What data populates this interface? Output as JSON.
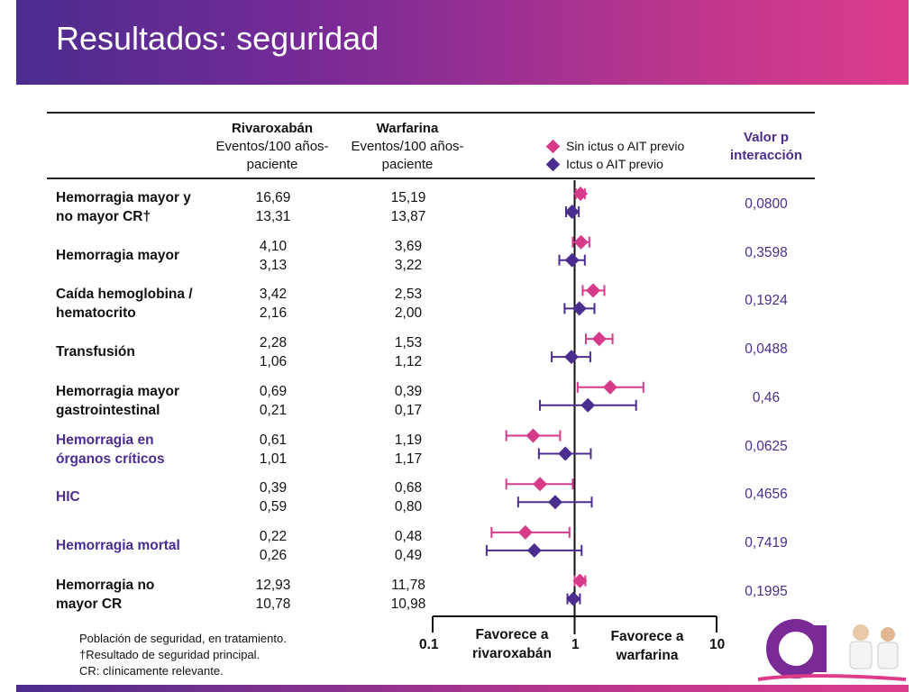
{
  "title": "Resultados: seguridad",
  "header": {
    "riva_line1": "Rivaroxabán",
    "riva_line2": "Eventos/100 años-",
    "riva_line3": "paciente",
    "warf_line1": "Warfarina",
    "warf_line2": "Eventos/100 años-",
    "warf_line3": "paciente",
    "pval_line1": "Valor p",
    "pval_line2": "interacción"
  },
  "legend": [
    {
      "label": "Sin ictus o AIT previo",
      "color": "#d63b8a"
    },
    {
      "label": "Ictus o AIT previo",
      "color": "#4b2d8f"
    }
  ],
  "rows": [
    {
      "label1": "Hemorragia mayor y",
      "label2": "no mayor CR†",
      "riva": [
        "16,69",
        "13,31"
      ],
      "warf": [
        "15,19",
        "13,87"
      ],
      "pval": "0,0800",
      "color": "black"
    },
    {
      "label1": "Hemorragia mayor",
      "label2": "",
      "riva": [
        "4,10",
        "3,13"
      ],
      "warf": [
        "3,69",
        "3,22"
      ],
      "pval": "0,3598",
      "color": "black"
    },
    {
      "label1": "Caída hemoglobina /",
      "label2": "hematocrito",
      "riva": [
        "3,42",
        "2,16"
      ],
      "warf": [
        "2,53",
        "2,00"
      ],
      "pval": "0,1924",
      "color": "black"
    },
    {
      "label1": "Transfusión",
      "label2": "",
      "riva": [
        "2,28",
        "1,06"
      ],
      "warf": [
        "1,53",
        "1,12"
      ],
      "pval": "0,0488",
      "color": "black"
    },
    {
      "label1": "Hemorragia mayor",
      "label2": "gastrointestinal",
      "riva": [
        "0,69",
        "0,21"
      ],
      "warf": [
        "0,39",
        "0,17"
      ],
      "pval": "0,46",
      "color": "black"
    },
    {
      "label1": "Hemorragia en",
      "label2": "órganos críticos",
      "riva": [
        "0,61",
        "1,01"
      ],
      "warf": [
        "1,19",
        "1,17"
      ],
      "pval": "0,0625",
      "color": "purple"
    },
    {
      "label1": "HIC",
      "label2": "",
      "riva": [
        "0,39",
        "0,59"
      ],
      "warf": [
        "0,68",
        "0,80"
      ],
      "pval": "0,4656",
      "color": "purple"
    },
    {
      "label1": "Hemorragia mortal",
      "label2": "",
      "riva": [
        "0,22",
        "0,26"
      ],
      "warf": [
        "0,48",
        "0,49"
      ],
      "pval": "0,7419",
      "color": "purple"
    },
    {
      "label1": "Hemorragia no",
      "label2": "mayor CR",
      "riva": [
        "12,93",
        "10,78"
      ],
      "warf": [
        "11,78",
        "10,98"
      ],
      "pval": "0,1995",
      "color": "black"
    }
  ],
  "axis": {
    "tick_left": "0.1",
    "tick_center": "1",
    "tick_right": "10",
    "favors_left_1": "Favorece a",
    "favors_left_2": "rivaroxabán",
    "favors_right_1": "Favorece a",
    "favors_right_2": "warfarina"
  },
  "footnotes": [
    "Población de seguridad, en tratamiento.",
    "†Resultado de seguridad principal.",
    "CR: clínicamente relevante."
  ],
  "chart_data": {
    "type": "forest",
    "scale": "log",
    "xlim": [
      0.1,
      10
    ],
    "reference": 1,
    "series": [
      {
        "name": "Sin ictus o AIT previo",
        "color": "#d63b8a",
        "points": [
          {
            "est": 1.1,
            "lo": 1.02,
            "hi": 1.18
          },
          {
            "est": 1.11,
            "lo": 0.97,
            "hi": 1.27
          },
          {
            "est": 1.35,
            "lo": 1.14,
            "hi": 1.62
          },
          {
            "est": 1.49,
            "lo": 1.2,
            "hi": 1.85
          },
          {
            "est": 1.78,
            "lo": 1.05,
            "hi": 3.05
          },
          {
            "est": 0.51,
            "lo": 0.33,
            "hi": 0.79
          },
          {
            "est": 0.57,
            "lo": 0.33,
            "hi": 0.97
          },
          {
            "est": 0.45,
            "lo": 0.26,
            "hi": 0.92
          },
          {
            "est": 1.09,
            "lo": 1.0,
            "hi": 1.19
          }
        ]
      },
      {
        "name": "Ictus o AIT previo",
        "color": "#4b2d8f",
        "points": [
          {
            "est": 0.96,
            "lo": 0.87,
            "hi": 1.07
          },
          {
            "est": 0.96,
            "lo": 0.78,
            "hi": 1.18
          },
          {
            "est": 1.08,
            "lo": 0.85,
            "hi": 1.38
          },
          {
            "est": 0.95,
            "lo": 0.69,
            "hi": 1.29
          },
          {
            "est": 1.24,
            "lo": 0.57,
            "hi": 2.71
          },
          {
            "est": 0.86,
            "lo": 0.56,
            "hi": 1.3
          },
          {
            "est": 0.73,
            "lo": 0.4,
            "hi": 1.32
          },
          {
            "est": 0.52,
            "lo": 0.24,
            "hi": 1.12
          },
          {
            "est": 0.98,
            "lo": 0.89,
            "hi": 1.09
          }
        ]
      }
    ]
  }
}
